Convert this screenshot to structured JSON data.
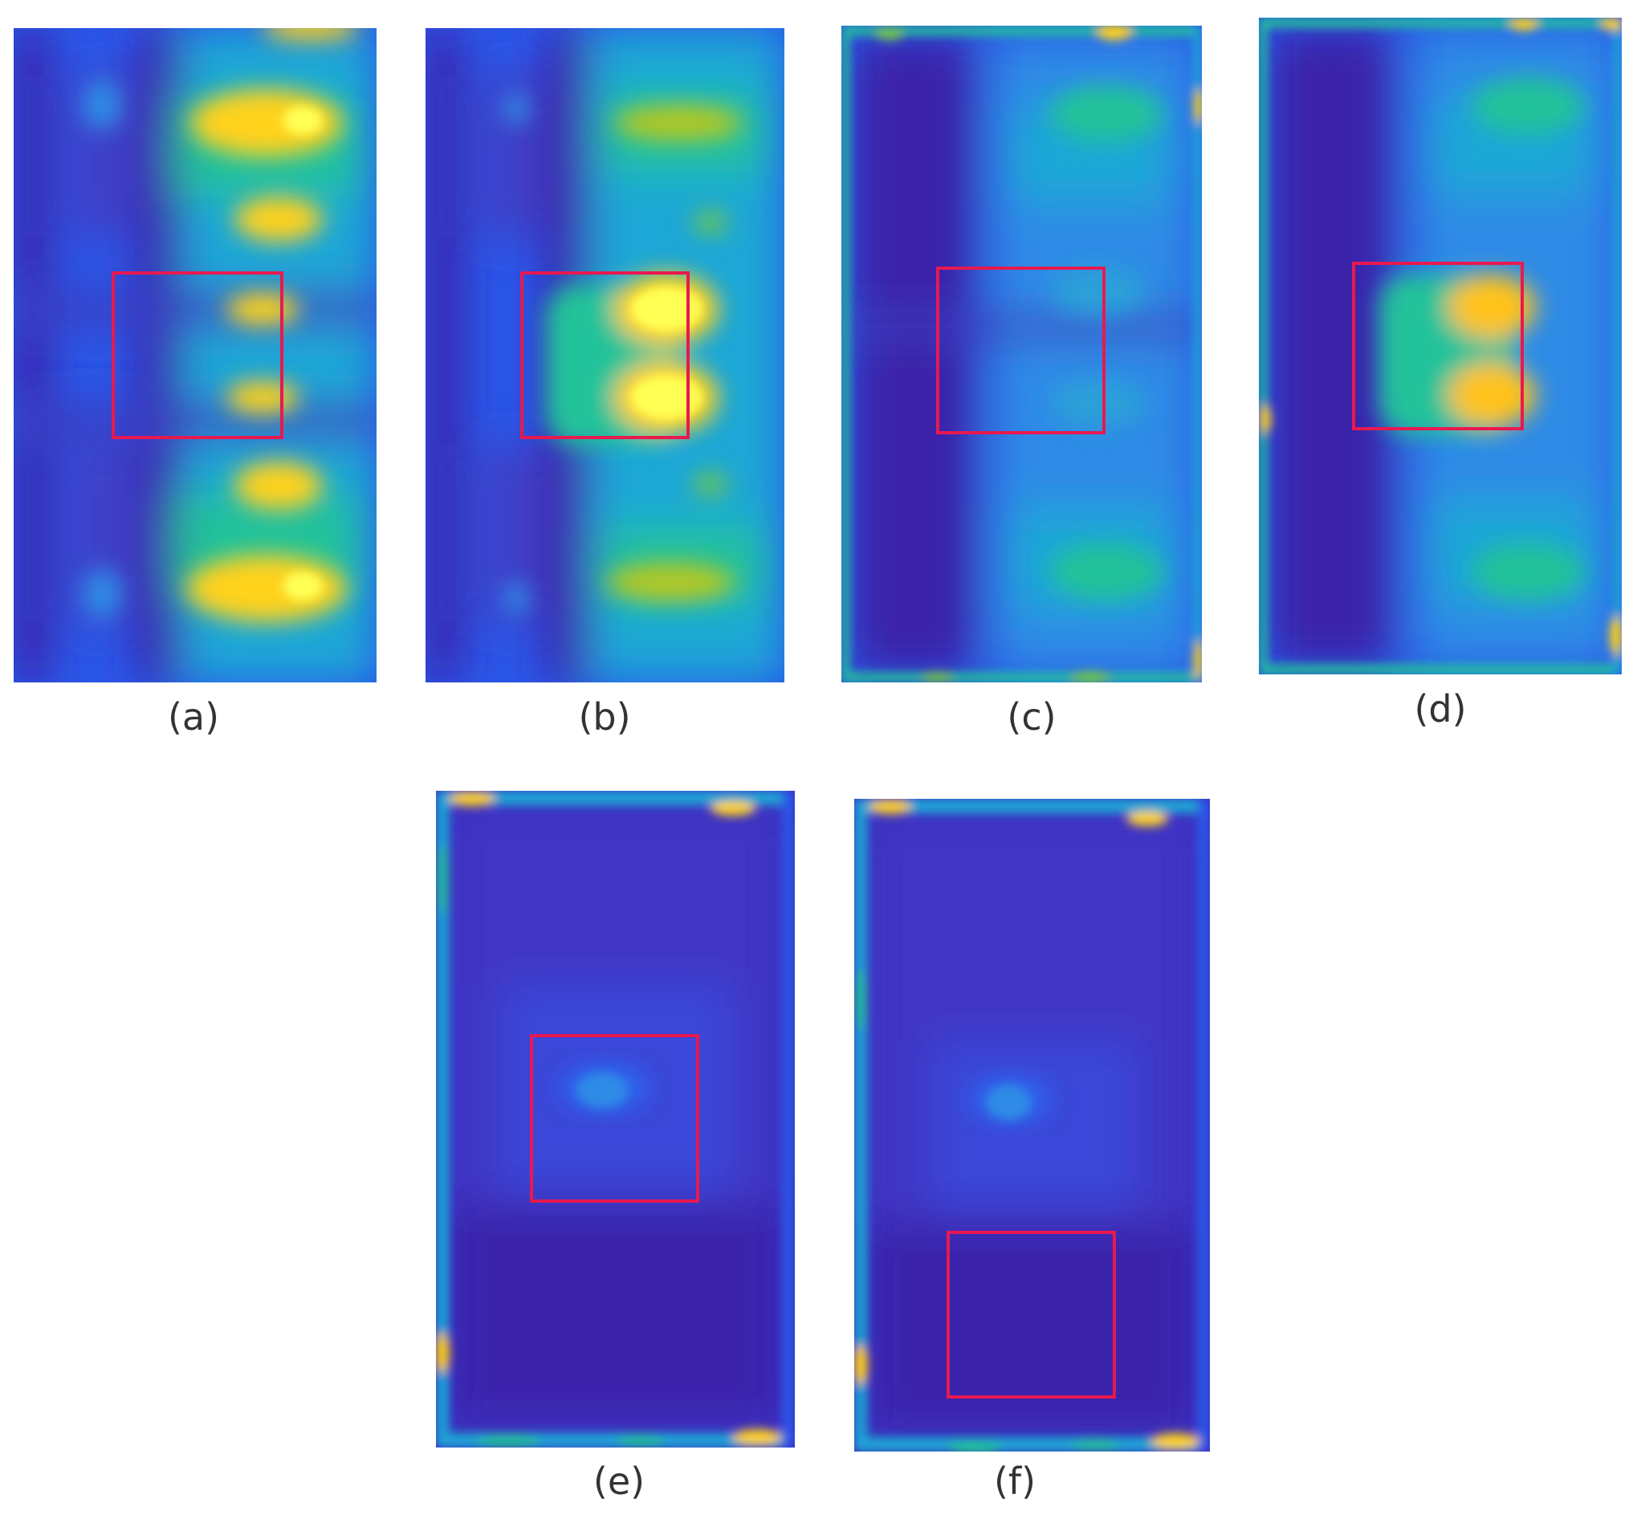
{
  "colors": {
    "deep": "#3b22a8",
    "mid_blue": "#2a57e8",
    "cyan": "#1aa7d6",
    "teal": "#21c29a",
    "green": "#6fc84a",
    "yellow": "#ffd21a",
    "bright_yellow": "#ffff55",
    "box": "#e8194f"
  },
  "panels": [
    {
      "id": "a",
      "caption": "(a)"
    },
    {
      "id": "b",
      "caption": "(b)"
    },
    {
      "id": "c",
      "caption": "(c)"
    },
    {
      "id": "d",
      "caption": "(d)"
    },
    {
      "id": "e",
      "caption": "(e)"
    },
    {
      "id": "f",
      "caption": "(f)"
    }
  ]
}
